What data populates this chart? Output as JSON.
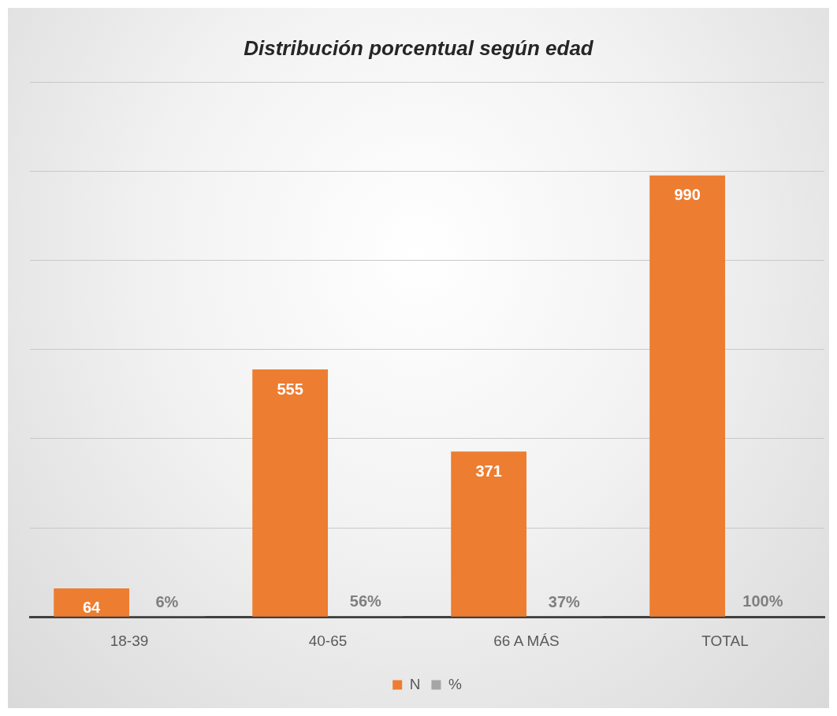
{
  "chart_data": {
    "type": "bar",
    "title": "Distribución porcentual según edad",
    "categories": [
      "18-39",
      "40-65",
      "66 A MÁS",
      "TOTAL"
    ],
    "series": [
      {
        "name": "N",
        "color": "#ed7d31",
        "values": [
          64,
          555,
          371,
          990
        ],
        "value_labels": [
          "64",
          "555",
          "371",
          "990"
        ]
      },
      {
        "name": "%",
        "color": "#a5a5a5",
        "values": [
          0.06,
          0.56,
          0.37,
          1
        ],
        "value_labels": [
          "6%",
          "56%",
          "37%",
          "100%"
        ]
      }
    ],
    "ylim": [
      0,
      1200
    ],
    "yticks": [
      {
        "value": 0,
        "label": null
      },
      {
        "value": 200,
        "label": null
      },
      {
        "value": 400,
        "label": null
      },
      {
        "value": 600,
        "label": null
      },
      {
        "value": 800,
        "label": null
      },
      {
        "value": 1000,
        "label": null
      },
      {
        "value": 1200,
        "label": null
      }
    ],
    "tick_labels": "x",
    "grid": "y",
    "legend": "bottom"
  }
}
